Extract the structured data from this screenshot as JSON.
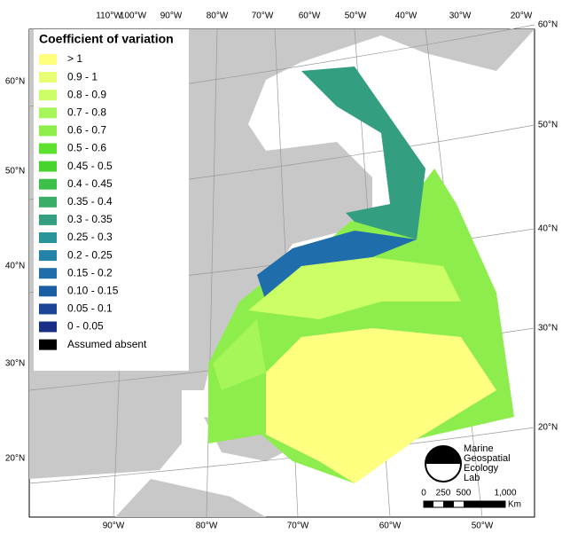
{
  "legend": {
    "title": "Coefficient of variation",
    "items": [
      {
        "label": "> 1",
        "color": "#ffff80"
      },
      {
        "label": "0.9 - 1",
        "color": "#e6ff73"
      },
      {
        "label": "0.8 - 0.9",
        "color": "#ccff66"
      },
      {
        "label": "0.7 - 0.8",
        "color": "#a6f55a"
      },
      {
        "label": "0.6 - 0.7",
        "color": "#8ced4d"
      },
      {
        "label": "0.5 - 0.6",
        "color": "#5de02e"
      },
      {
        "label": "0.45 - 0.5",
        "color": "#47d42e"
      },
      {
        "label": "0.4 - 0.45",
        "color": "#3dbf4a"
      },
      {
        "label": "0.35 - 0.4",
        "color": "#3aad68"
      },
      {
        "label": "0.3 - 0.35",
        "color": "#339e80"
      },
      {
        "label": "0.25 - 0.3",
        "color": "#2b9499"
      },
      {
        "label": "0.2 - 0.25",
        "color": "#2482a8"
      },
      {
        "label": "0.15 - 0.2",
        "color": "#1f6eab"
      },
      {
        "label": "0.10 - 0.15",
        "color": "#1a5ea3"
      },
      {
        "label": "0.05 - 0.1",
        "color": "#1a4596"
      },
      {
        "label": "0 - 0.05",
        "color": "#1a2d85"
      },
      {
        "label": "Assumed absent",
        "color": "#000000"
      }
    ]
  },
  "graticule": {
    "top": [
      "110°W",
      "100°W",
      "90°W",
      "80°W",
      "70°W",
      "60°W",
      "50°W",
      "40°W",
      "30°W",
      "20°W"
    ],
    "bottom": [
      "90°W",
      "80°W",
      "70°W",
      "60°W",
      "50°W"
    ],
    "left": [
      "60°N",
      "50°N",
      "40°N",
      "30°N",
      "20°N"
    ],
    "right": [
      "60°N",
      "50°N",
      "40°N",
      "30°N",
      "20°N"
    ]
  },
  "logo": [
    "Marine",
    "Geospatial",
    "Ecology",
    "Lab"
  ],
  "scale_bar": {
    "labels": [
      "0",
      "250",
      "500",
      "1,000"
    ],
    "unit": "Km"
  }
}
